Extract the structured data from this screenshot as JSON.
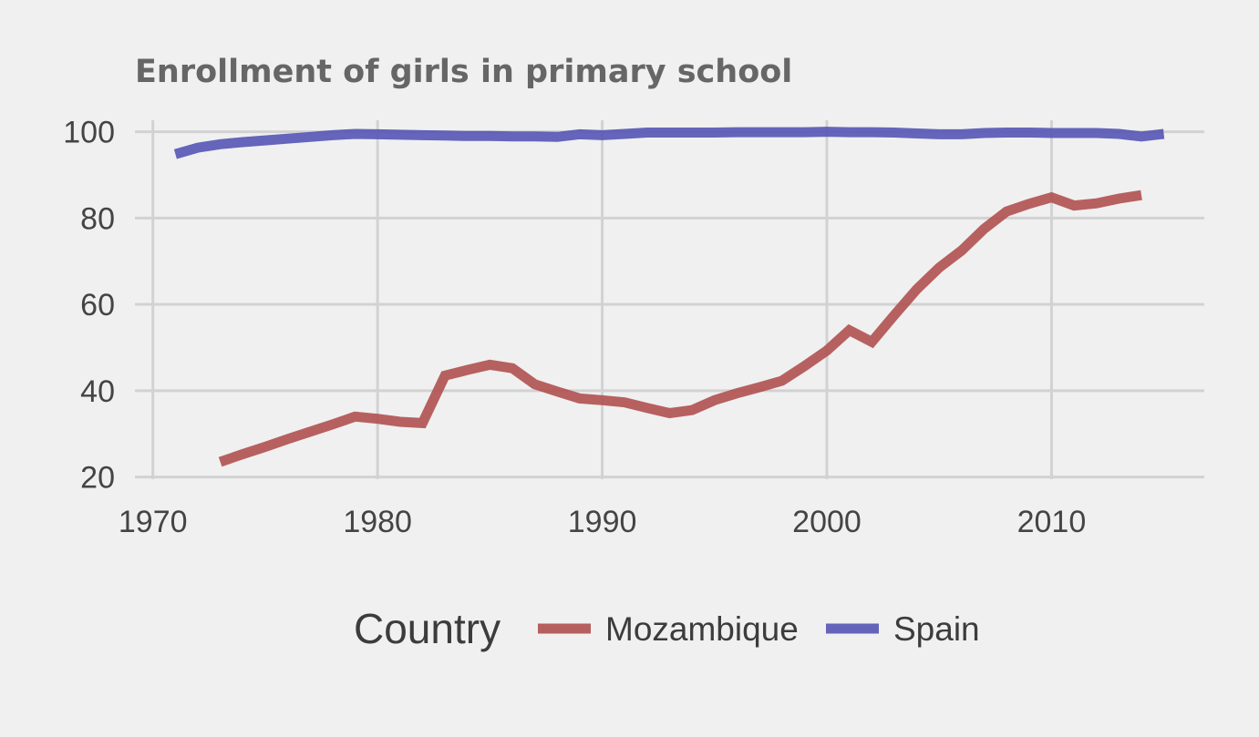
{
  "chart_data": {
    "type": "line",
    "title": "Enrollment of girls in primary school",
    "xlabel": "",
    "ylabel": "",
    "xlim": [
      1969.2,
      2016.8
    ],
    "ylim": [
      19.5,
      103.5
    ],
    "x_ticks": [
      1970,
      1980,
      1990,
      2000,
      2010
    ],
    "y_ticks": [
      20,
      40,
      60,
      80,
      100
    ],
    "grid": true,
    "legend": {
      "title": "Country",
      "placement": "bottom"
    },
    "series": [
      {
        "name": "Mozambique",
        "color": "#b05050",
        "points": [
          [
            1973,
            23.5
          ],
          [
            1974,
            25.3
          ],
          [
            1975,
            27.0
          ],
          [
            1976,
            28.8
          ],
          [
            1977,
            30.5
          ],
          [
            1978,
            32.2
          ],
          [
            1979,
            34.0
          ],
          [
            1980,
            33.5
          ],
          [
            1981,
            32.8
          ],
          [
            1982,
            32.5
          ],
          [
            1983,
            43.5
          ],
          [
            1984,
            44.8
          ],
          [
            1985,
            46.0
          ],
          [
            1986,
            45.2
          ],
          [
            1987,
            41.5
          ],
          [
            1988,
            39.8
          ],
          [
            1989,
            38.2
          ],
          [
            1990,
            37.8
          ],
          [
            1991,
            37.3
          ],
          [
            1992,
            36.0
          ],
          [
            1993,
            34.8
          ],
          [
            1994,
            35.5
          ],
          [
            1995,
            37.8
          ],
          [
            1996,
            39.4
          ],
          [
            1997,
            40.8
          ],
          [
            1998,
            42.3
          ],
          [
            1999,
            45.7
          ],
          [
            2000,
            49.3
          ],
          [
            2001,
            54.0
          ],
          [
            2002,
            51.3
          ],
          [
            2003,
            57.5
          ],
          [
            2004,
            63.5
          ],
          [
            2005,
            68.5
          ],
          [
            2006,
            72.5
          ],
          [
            2007,
            77.5
          ],
          [
            2008,
            81.5
          ],
          [
            2009,
            83.3
          ],
          [
            2010,
            84.8
          ],
          [
            2011,
            82.9
          ],
          [
            2012,
            83.4
          ],
          [
            2013,
            84.5
          ],
          [
            2014,
            85.3
          ]
        ]
      },
      {
        "name": "Spain",
        "color": "#5555b5",
        "points": [
          [
            1971,
            94.8
          ],
          [
            1972,
            96.3
          ],
          [
            1973,
            97.1
          ],
          [
            1974,
            97.6
          ],
          [
            1975,
            98.0
          ],
          [
            1976,
            98.4
          ],
          [
            1977,
            98.8
          ],
          [
            1978,
            99.2
          ],
          [
            1979,
            99.5
          ],
          [
            1980,
            99.4
          ],
          [
            1981,
            99.3
          ],
          [
            1982,
            99.2
          ],
          [
            1983,
            99.1
          ],
          [
            1984,
            99.0
          ],
          [
            1985,
            99.0
          ],
          [
            1986,
            98.9
          ],
          [
            1987,
            98.9
          ],
          [
            1988,
            98.8
          ],
          [
            1989,
            99.4
          ],
          [
            1990,
            99.2
          ],
          [
            1991,
            99.5
          ],
          [
            1992,
            99.8
          ],
          [
            1993,
            99.8
          ],
          [
            1994,
            99.8
          ],
          [
            1995,
            99.8
          ],
          [
            1996,
            99.9
          ],
          [
            1997,
            99.9
          ],
          [
            1998,
            99.9
          ],
          [
            1999,
            99.9
          ],
          [
            2000,
            100.0
          ],
          [
            2001,
            99.9
          ],
          [
            2002,
            99.9
          ],
          [
            2003,
            99.8
          ],
          [
            2004,
            99.6
          ],
          [
            2005,
            99.4
          ],
          [
            2006,
            99.4
          ],
          [
            2007,
            99.7
          ],
          [
            2008,
            99.8
          ],
          [
            2009,
            99.8
          ],
          [
            2010,
            99.7
          ],
          [
            2011,
            99.7
          ],
          [
            2012,
            99.7
          ],
          [
            2013,
            99.5
          ],
          [
            2014,
            98.9
          ],
          [
            2015,
            99.5
          ]
        ]
      }
    ]
  }
}
